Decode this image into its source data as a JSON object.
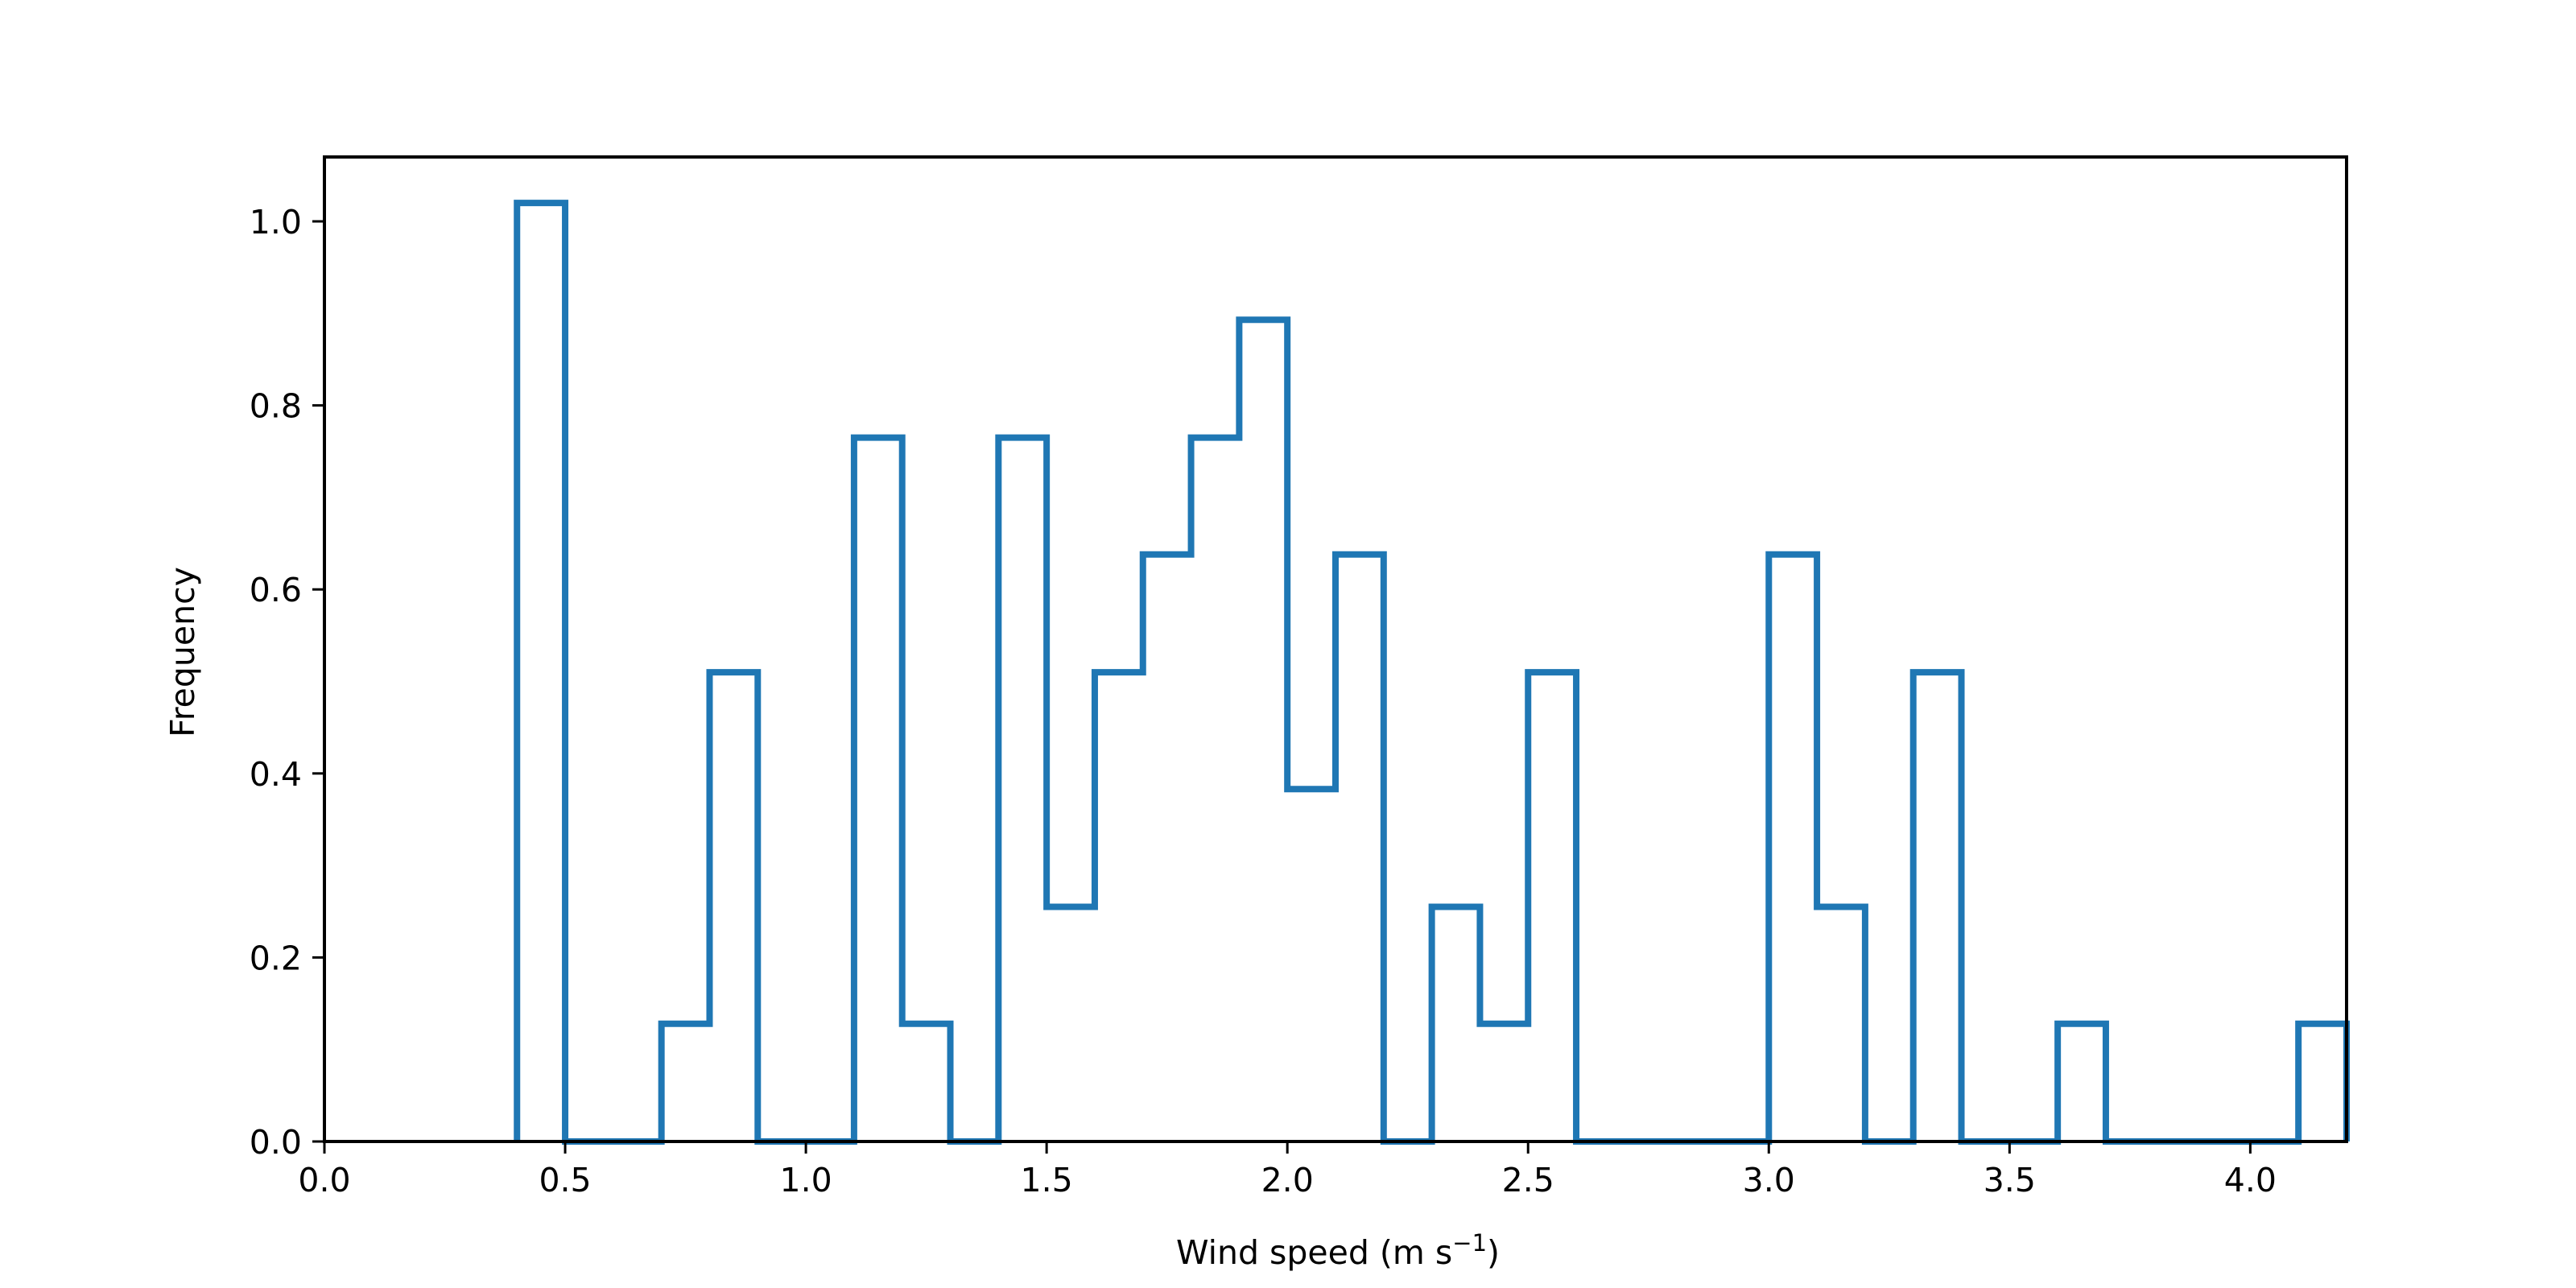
{
  "chart_data": {
    "type": "histogram",
    "histtype": "step",
    "xlabel": "Wind speed (m s",
    "xlabel_superscript": "−1",
    "xlabel_suffix": ")",
    "ylabel": "Frequency",
    "xlim": [
      0.0,
      4.2
    ],
    "ylim": [
      0.0,
      1.07
    ],
    "grid": false,
    "line_color": "#1f77b4",
    "x_ticks": [
      0.0,
      0.5,
      1.0,
      1.5,
      2.0,
      2.5,
      3.0,
      3.5,
      4.0
    ],
    "x_tick_labels": [
      "0.0",
      "0.5",
      "1.0",
      "1.5",
      "2.0",
      "2.5",
      "3.0",
      "3.5",
      "4.0"
    ],
    "y_ticks": [
      0.0,
      0.2,
      0.4,
      0.6,
      0.8,
      1.0
    ],
    "y_tick_labels": [
      "0.0",
      "0.2",
      "0.4",
      "0.6",
      "0.8",
      "1.0"
    ],
    "bin_edges": [
      0.4,
      0.5,
      0.6,
      0.7,
      0.8,
      0.9,
      1.0,
      1.1,
      1.2,
      1.3,
      1.4,
      1.5,
      1.6,
      1.7,
      1.8,
      1.9,
      2.0,
      2.1,
      2.2,
      2.3,
      2.4,
      2.5,
      2.6,
      2.7,
      2.8,
      2.9,
      3.0,
      3.1,
      3.2,
      3.3,
      3.4,
      3.5,
      3.6,
      3.7,
      3.8,
      3.9,
      4.0,
      4.1,
      4.2
    ],
    "values": [
      1.02,
      0,
      0,
      0.128,
      0.51,
      0,
      0,
      0.765,
      0.128,
      0,
      0.765,
      0.255,
      0.51,
      0.638,
      0.765,
      0.893,
      0.383,
      0.638,
      0,
      0.255,
      0.128,
      0.51,
      0,
      0,
      0,
      0,
      0.638,
      0.255,
      0,
      0.51,
      0,
      0,
      0.128,
      0,
      0,
      0,
      0,
      0.128
    ]
  }
}
